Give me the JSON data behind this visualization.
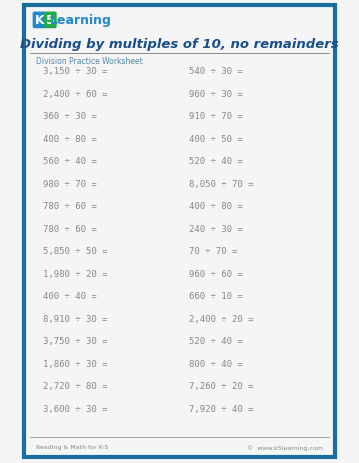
{
  "title": "Dividing by multiples of 10, no remainders",
  "subtitle": "Division Practice Worksheet",
  "background_color": "#f5f5f5",
  "border_color": "#1a6e9e",
  "title_color": "#1a4e8c",
  "subtitle_color": "#5588aa",
  "problem_color": "#888888",
  "footer_left": "Reading & Math for K-5",
  "footer_right": "©  www.k5learning.com",
  "left_problems": [
    "3,150 ÷ 30 =",
    "2,400 ÷ 60 =",
    "360 ÷ 30 =",
    "400 ÷ 80 =",
    "560 ÷ 40 =",
    "980 ÷ 70 =",
    "780 ÷ 60 =",
    "780 ÷ 60 =",
    "5,850 ÷ 50 =",
    "1,980 ÷ 20 =",
    "400 ÷ 40 =",
    "8,910 ÷ 30 =",
    "3,750 ÷ 30 =",
    "1,860 ÷ 30 =",
    "2,720 ÷ 80 =",
    "3,600 ÷ 30 ="
  ],
  "right_problems": [
    "540 ÷ 30 =",
    "960 ÷ 30 =",
    "910 ÷ 70 =",
    "400 ÷ 50 =",
    "520 ÷ 40 =",
    "8,050 ÷ 70 =",
    "400 ÷ 80 =",
    "240 ÷ 30 =",
    "70 ÷ 70 =",
    "960 ÷ 60 =",
    "660 ÷ 10 =",
    "2,400 ÷ 20 =",
    "520 ÷ 40 =",
    "800 ÷ 40 =",
    "7,260 ÷ 20 =",
    "7,920 ÷ 40 ="
  ]
}
